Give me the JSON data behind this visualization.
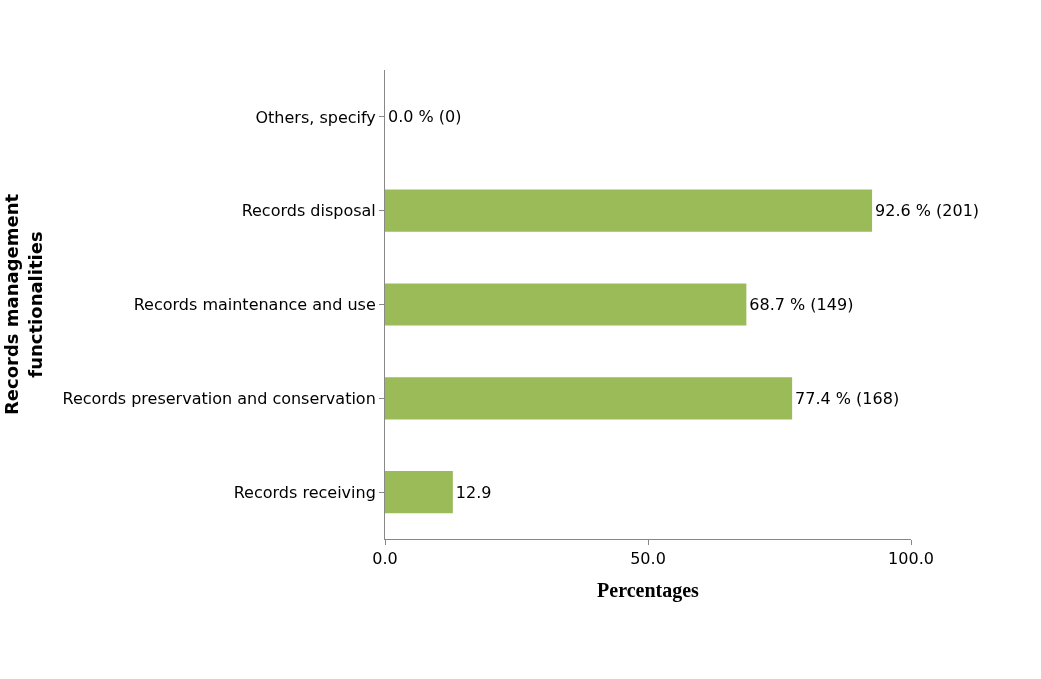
{
  "chart_data": {
    "type": "bar",
    "orientation": "horizontal",
    "xlabel": "Percentages",
    "ylabel": "Records management\nfunctionalities",
    "categories": [
      "Others, specify",
      "Records disposal",
      "Records maintenance and use",
      "Records preservation and conservation",
      "Records receiving"
    ],
    "values": [
      0.0,
      92.6,
      68.7,
      77.4,
      12.9
    ],
    "value_labels": [
      "0.0 % (0)",
      "92.6 % (201)",
      "68.7 % (149)",
      "77.4 % (168)",
      "12.9"
    ],
    "color": "#9bbb59",
    "xlim": [
      0,
      100
    ],
    "xticks": [
      {
        "value": 0,
        "label": "0.0"
      },
      {
        "value": 50,
        "label": "50.0"
      },
      {
        "value": 100,
        "label": "100.0"
      }
    ],
    "legend": false
  }
}
